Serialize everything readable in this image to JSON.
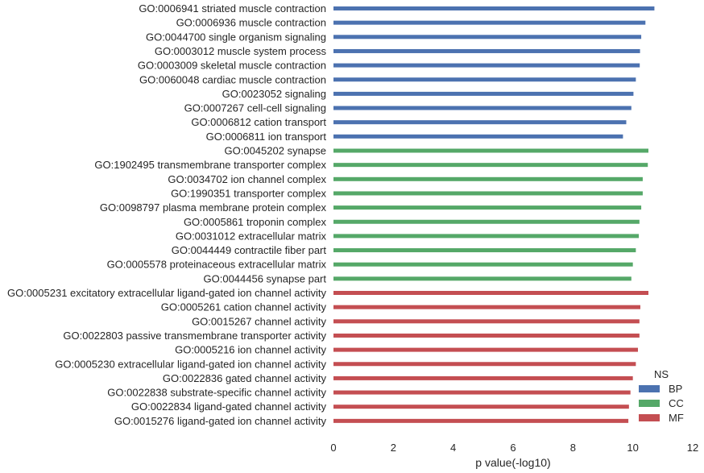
{
  "chart_data": {
    "type": "bar",
    "orientation": "horizontal",
    "xlabel": "p value(-log10)",
    "ylabel": "",
    "xlim": [
      0,
      12
    ],
    "xticks": [
      0,
      2,
      4,
      6,
      8,
      10,
      12
    ],
    "grid": false,
    "legend": {
      "title": "NS",
      "placement": "bottom-right",
      "entries": [
        {
          "name": "BP",
          "color": "#4c72b0"
        },
        {
          "name": "CC",
          "color": "#55a868"
        },
        {
          "name": "MF",
          "color": "#c44e52"
        }
      ]
    },
    "categories": [
      "GO:0006941 striated muscle contraction",
      "GO:0006936 muscle contraction",
      "GO:0044700 single organism signaling",
      "GO:0003012 muscle system process",
      "GO:0003009 skeletal muscle contraction",
      "GO:0060048 cardiac muscle contraction",
      "GO:0023052 signaling",
      "GO:0007267 cell-cell signaling",
      "GO:0006812 cation transport",
      "GO:0006811 ion transport",
      "GO:0045202 synapse",
      "GO:1902495 transmembrane transporter complex",
      "GO:0034702 ion channel complex",
      "GO:1990351 transporter complex",
      "GO:0098797 plasma membrane protein complex",
      "GO:0005861 troponin complex",
      "GO:0031012 extracellular matrix",
      "GO:0044449 contractile fiber part",
      "GO:0005578 proteinaceous extracellular matrix",
      "GO:0044456 synapse part",
      "GO:0005231 excitatory extracellular ligand-gated ion channel activity",
      "GO:0005261 cation channel activity",
      "GO:0015267 channel activity",
      "GO:0022803 passive transmembrane transporter activity",
      "GO:0005216 ion channel activity",
      "GO:0005230 extracellular ligand-gated ion channel activity",
      "GO:0022836 gated channel activity",
      "GO:0022838 substrate-specific channel activity",
      "GO:0022834 ligand-gated channel activity",
      "GO:0015276 ligand-gated ion channel activity"
    ],
    "values": [
      10.72,
      10.42,
      10.28,
      10.24,
      10.23,
      10.1,
      10.02,
      9.95,
      9.78,
      9.67,
      10.52,
      10.5,
      10.33,
      10.33,
      10.28,
      10.22,
      10.2,
      10.1,
      10.0,
      9.95,
      10.52,
      10.25,
      10.22,
      10.22,
      10.17,
      10.1,
      10.0,
      9.92,
      9.87,
      9.85
    ],
    "groups": [
      "BP",
      "BP",
      "BP",
      "BP",
      "BP",
      "BP",
      "BP",
      "BP",
      "BP",
      "BP",
      "CC",
      "CC",
      "CC",
      "CC",
      "CC",
      "CC",
      "CC",
      "CC",
      "CC",
      "CC",
      "MF",
      "MF",
      "MF",
      "MF",
      "MF",
      "MF",
      "MF",
      "MF",
      "MF",
      "MF"
    ]
  }
}
